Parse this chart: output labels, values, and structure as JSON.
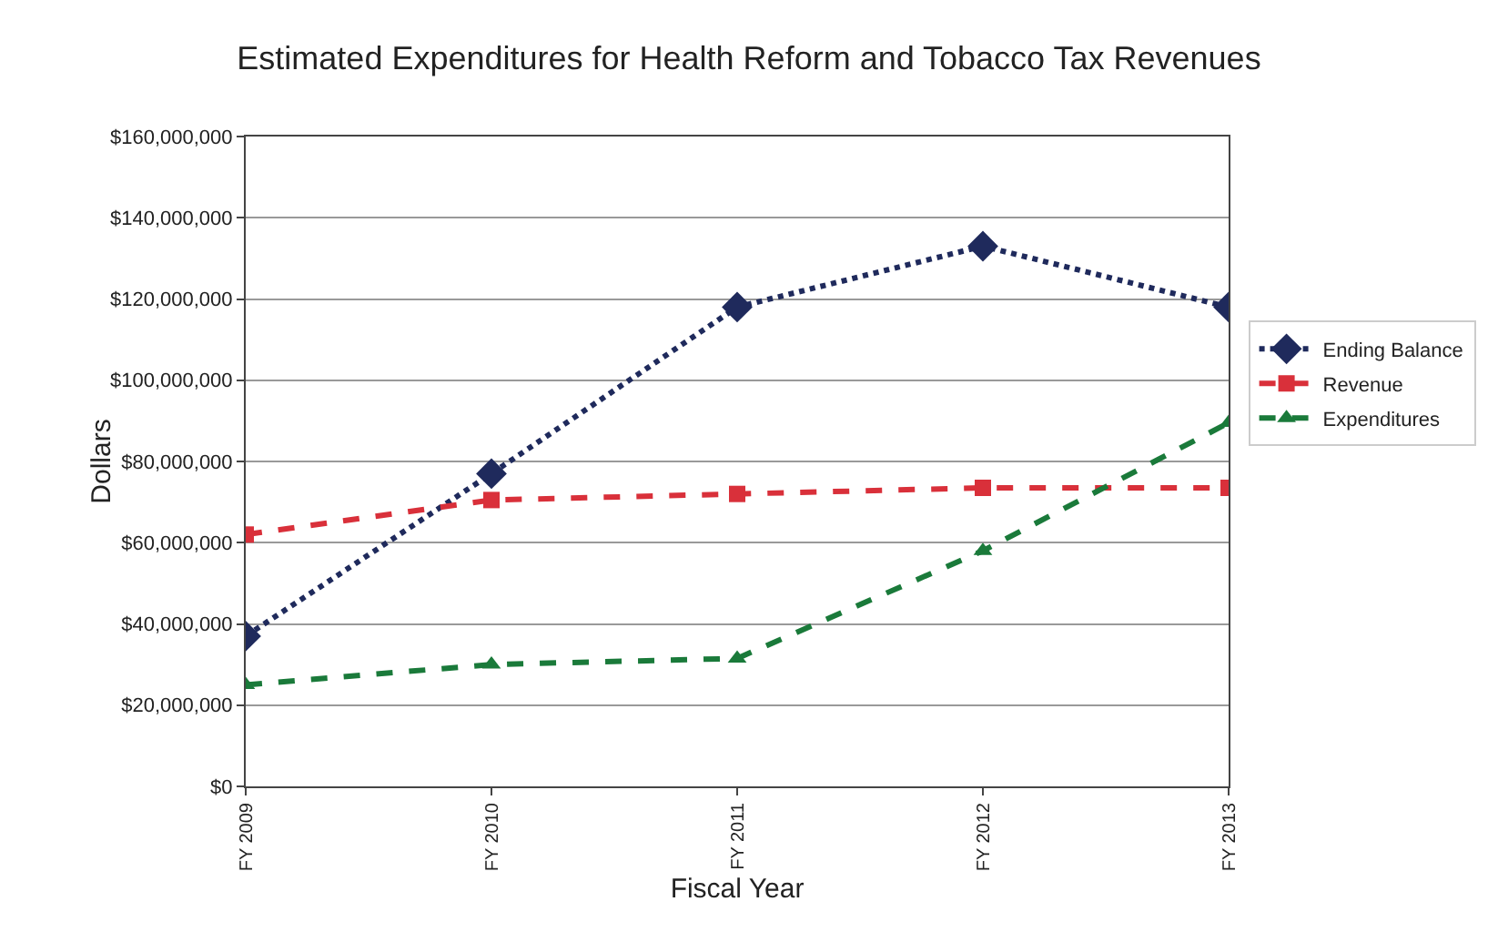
{
  "chart_data": {
    "type": "line",
    "title": "Estimated Expenditures for Health Reform and Tobacco Tax Revenues",
    "xlabel": "Fiscal Year",
    "ylabel": "Dollars",
    "categories": [
      "FY 2009",
      "FY 2010",
      "FY 2011",
      "FY 2012",
      "FY 2013"
    ],
    "series": [
      {
        "name": "Ending Balance",
        "color": "#1f2a5c",
        "marker": "diamond",
        "line_style": "dotted",
        "values": [
          37000000,
          77000000,
          118000000,
          133000000,
          118000000
        ]
      },
      {
        "name": "Revenue",
        "color": "#d9303a",
        "marker": "square",
        "line_style": "dashed",
        "values": [
          62000000,
          70500000,
          72000000,
          73500000,
          73500000
        ]
      },
      {
        "name": "Expenditures",
        "color": "#1a7a3a",
        "marker": "triangle",
        "line_style": "dashed",
        "values": [
          25000000,
          30000000,
          31500000,
          58000000,
          89500000
        ]
      }
    ],
    "ylim": [
      0,
      160000000
    ],
    "yticks": [
      {
        "value": 0,
        "label": "$0"
      },
      {
        "value": 20000000,
        "label": "$20,000,000"
      },
      {
        "value": 40000000,
        "label": "$40,000,000"
      },
      {
        "value": 60000000,
        "label": "$60,000,000"
      },
      {
        "value": 80000000,
        "label": "$80,000,000"
      },
      {
        "value": 100000000,
        "label": "$100,000,000"
      },
      {
        "value": 120000000,
        "label": "$120,000,000"
      },
      {
        "value": 140000000,
        "label": "$140,000,000"
      },
      {
        "value": 160000000,
        "label": "$160,000,000"
      }
    ],
    "grid": "y",
    "legend": "right"
  }
}
